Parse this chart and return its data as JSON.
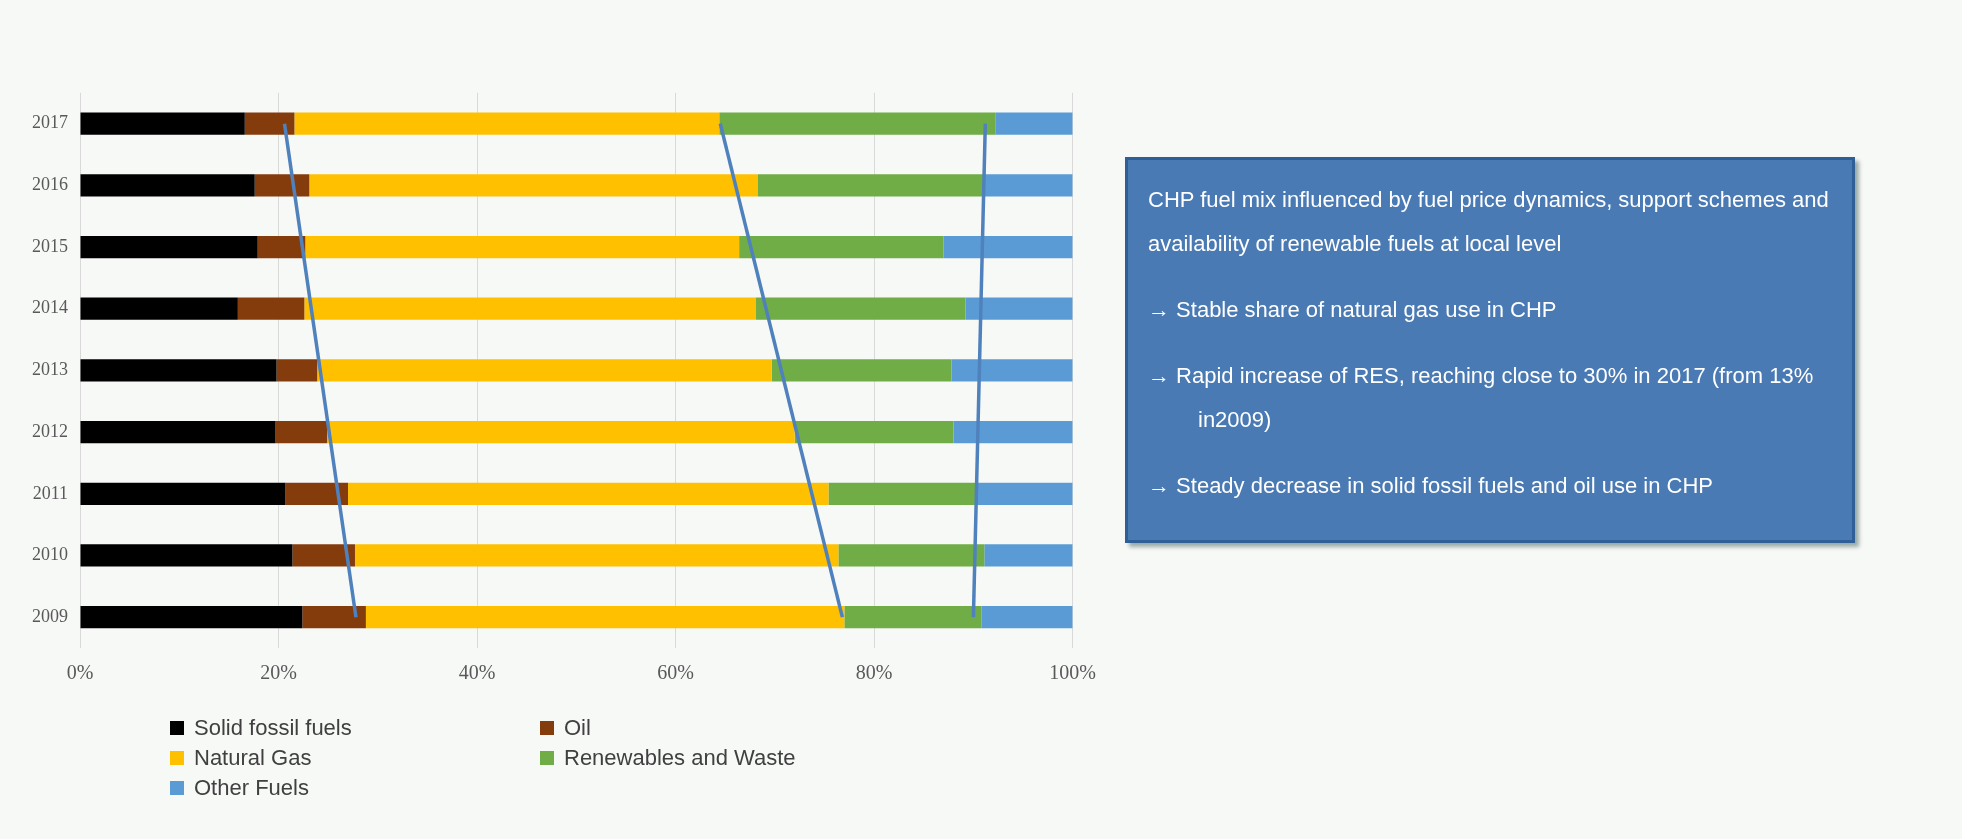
{
  "chart_data": {
    "type": "bar",
    "orientation": "horizontal",
    "stacked": true,
    "categories": [
      "2017",
      "2016",
      "2015",
      "2014",
      "2013",
      "2012",
      "2011",
      "2010",
      "2009"
    ],
    "series": [
      {
        "name": "Solid fossil fuels",
        "color": "#000000",
        "values": [
          16.6,
          17.6,
          17.9,
          15.9,
          19.8,
          19.7,
          20.7,
          21.4,
          22.4
        ]
      },
      {
        "name": "Oil",
        "color": "#843c0c",
        "values": [
          5.0,
          5.5,
          4.8,
          6.7,
          4.1,
          5.2,
          6.3,
          6.3,
          6.4
        ]
      },
      {
        "name": "Natural Gas",
        "color": "#ffc000",
        "values": [
          42.8,
          45.2,
          43.7,
          45.5,
          45.8,
          47.1,
          48.4,
          48.7,
          48.2
        ]
      },
      {
        "name": "Renewables and Waste",
        "color": "#70ad47",
        "values": [
          27.8,
          22.7,
          20.6,
          21.1,
          18.1,
          16.0,
          14.8,
          14.7,
          13.8
        ]
      },
      {
        "name": "Other Fuels",
        "color": "#5b9bd5",
        "values": [
          7.8,
          9.0,
          13.0,
          10.8,
          12.2,
          12.0,
          9.8,
          8.9,
          9.2
        ]
      },
      {
        "type": "line",
        "color": "#4f81bd",
        "values": [
          20.6,
          null,
          null,
          null,
          null,
          null,
          null,
          null,
          27.8
        ]
      },
      {
        "type": "line",
        "color": "#4f81bd",
        "values": [
          64.5,
          null,
          null,
          null,
          null,
          null,
          null,
          null,
          76.8
        ]
      },
      {
        "type": "line",
        "color": "#4f81bd",
        "values": [
          91.2,
          null,
          null,
          null,
          null,
          null,
          null,
          null,
          90.0
        ]
      }
    ],
    "xlim": [
      0,
      100
    ],
    "xticks": [
      {
        "value": 0,
        "label": "0%"
      },
      {
        "value": 20,
        "label": "20%"
      },
      {
        "value": 40,
        "label": "40%"
      },
      {
        "value": 60,
        "label": "60%"
      },
      {
        "value": 80,
        "label": "80%"
      },
      {
        "value": 100,
        "label": "100%"
      }
    ],
    "grid": "x",
    "legend": "bottom",
    "marker": "none",
    "annotations": [
      "CHP fuel mix influenced by fuel price dynamics, support schemes and availability of renewable fuels at local level",
      "→  Stable share of natural gas use in CHP",
      "→  Rapid increase of RES, reaching close to 30% in 2017 (from 13% in2009)",
      "→  Steady decrease in solid fossil fuels and oil use in CHP"
    ]
  }
}
